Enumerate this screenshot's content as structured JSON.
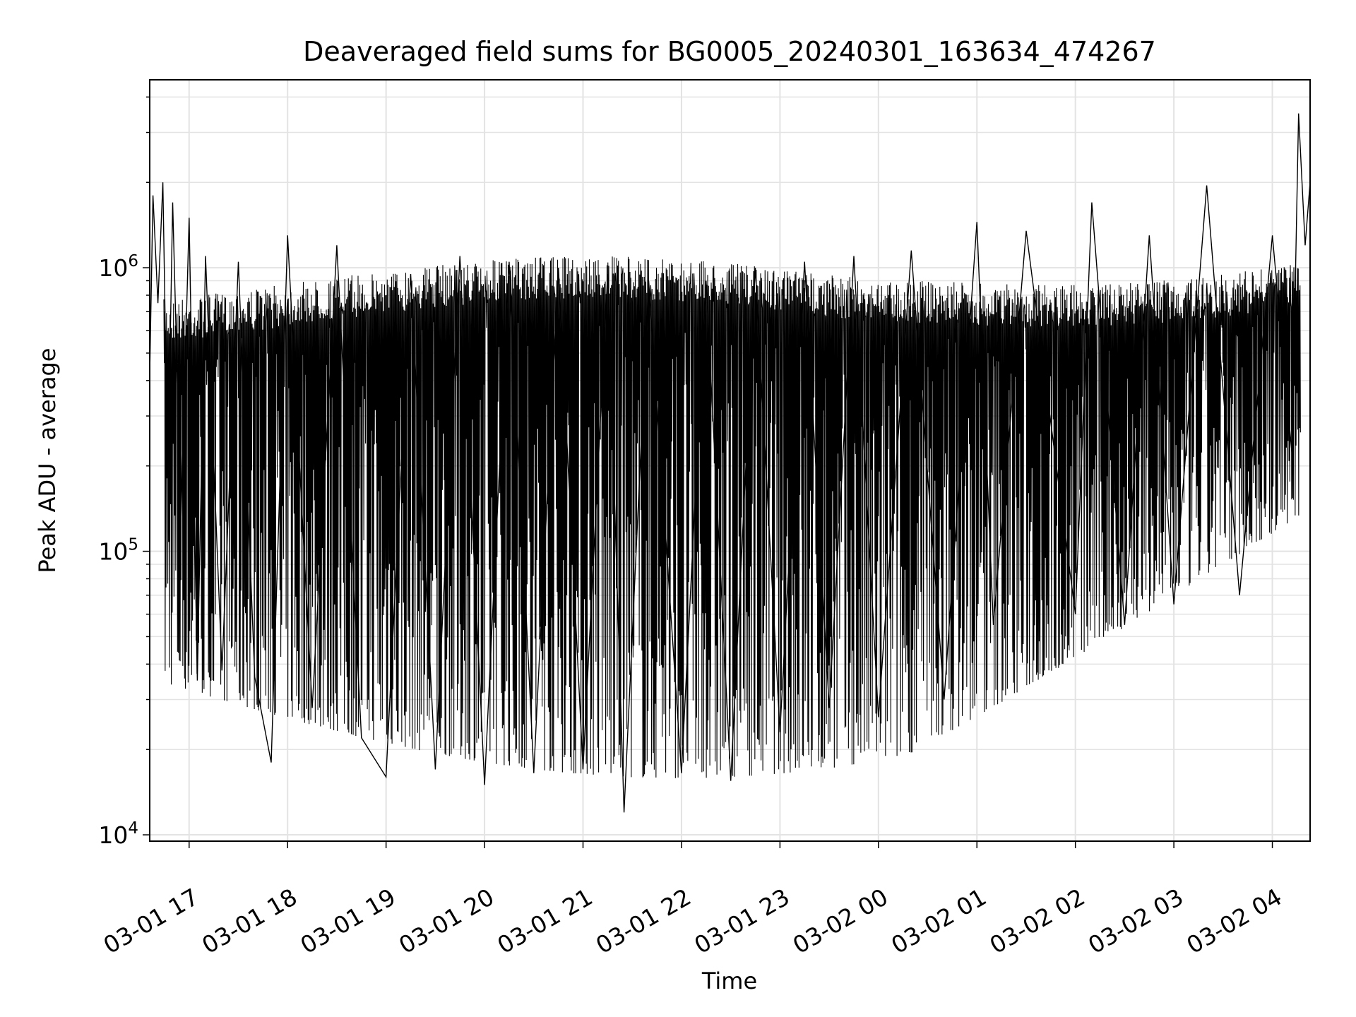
{
  "chart_data": {
    "type": "line",
    "title": "Deaveraged field sums for BG0005_20240301_163634_474267",
    "xlabel": "Time",
    "ylabel": "Peak ADU - average",
    "y_scale": "log",
    "ylim": [
      9500,
      4600000
    ],
    "xlim": [
      "2024-03-01 16:36",
      "2024-03-02 04:23"
    ],
    "grid": true,
    "line_color": "#000000",
    "grid_color": "#e3e3e3",
    "x_ticks": [
      {
        "t": "2024-03-01 17:00",
        "label": "03-01 17"
      },
      {
        "t": "2024-03-01 18:00",
        "label": "03-01 18"
      },
      {
        "t": "2024-03-01 19:00",
        "label": "03-01 19"
      },
      {
        "t": "2024-03-01 20:00",
        "label": "03-01 20"
      },
      {
        "t": "2024-03-01 21:00",
        "label": "03-01 21"
      },
      {
        "t": "2024-03-01 22:00",
        "label": "03-01 22"
      },
      {
        "t": "2024-03-01 23:00",
        "label": "03-01 23"
      },
      {
        "t": "2024-03-02 00:00",
        "label": "03-02 00"
      },
      {
        "t": "2024-03-02 01:00",
        "label": "03-02 01"
      },
      {
        "t": "2024-03-02 02:00",
        "label": "03-02 02"
      },
      {
        "t": "2024-03-02 03:00",
        "label": "03-02 03"
      },
      {
        "t": "2024-03-02 04:00",
        "label": "03-02 04"
      }
    ],
    "y_ticks": [
      {
        "value": 10000,
        "base": "10",
        "exp": "4"
      },
      {
        "value": 100000,
        "base": "10",
        "exp": "5"
      },
      {
        "value": 1000000,
        "base": "10",
        "exp": "6"
      }
    ],
    "series": [
      {
        "points": [
          [
            "2024-03-01 16:36",
            420000
          ],
          [
            "2024-03-01 16:38",
            1800000
          ],
          [
            "2024-03-01 16:41",
            750000
          ],
          [
            "2024-03-01 16:44",
            2000000
          ],
          [
            "2024-03-01 16:47",
            180000
          ],
          [
            "2024-03-01 16:50",
            1700000
          ],
          [
            "2024-03-01 16:55",
            130000
          ],
          [
            "2024-03-01 17:00",
            1500000
          ],
          [
            "2024-03-01 17:05",
            35000
          ],
          [
            "2024-03-01 17:10",
            1100000
          ],
          [
            "2024-03-01 17:20",
            38000
          ],
          [
            "2024-03-01 17:30",
            1050000
          ],
          [
            "2024-03-01 17:40",
            36000
          ],
          [
            "2024-03-01 17:50",
            18000
          ],
          [
            "2024-03-01 18:00",
            1300000
          ],
          [
            "2024-03-01 18:15",
            28000
          ],
          [
            "2024-03-01 18:30",
            1200000
          ],
          [
            "2024-03-01 18:45",
            22000
          ],
          [
            "2024-03-01 19:00",
            16000
          ],
          [
            "2024-03-01 19:15",
            950000
          ],
          [
            "2024-03-01 19:30",
            17000
          ],
          [
            "2024-03-01 19:45",
            1100000
          ],
          [
            "2024-03-01 20:00",
            15000
          ],
          [
            "2024-03-01 20:15",
            1050000
          ],
          [
            "2024-03-01 20:30",
            16500
          ],
          [
            "2024-03-01 20:45",
            1000000
          ],
          [
            "2024-03-01 21:00",
            17000
          ],
          [
            "2024-03-01 21:15",
            950000
          ],
          [
            "2024-03-01 21:25",
            12000
          ],
          [
            "2024-03-01 21:40",
            900000
          ],
          [
            "2024-03-01 22:00",
            16500
          ],
          [
            "2024-03-01 22:15",
            900000
          ],
          [
            "2024-03-01 22:30",
            15500
          ],
          [
            "2024-03-01 22:45",
            1000000
          ],
          [
            "2024-03-01 23:00",
            23000
          ],
          [
            "2024-03-01 23:15",
            1050000
          ],
          [
            "2024-03-01 23:30",
            28000
          ],
          [
            "2024-03-01 23:45",
            1100000
          ],
          [
            "2024-03-02 00:00",
            26000
          ],
          [
            "2024-03-02 00:20",
            1150000
          ],
          [
            "2024-03-02 00:40",
            30000
          ],
          [
            "2024-03-02 01:00",
            1450000
          ],
          [
            "2024-03-02 01:10",
            55000
          ],
          [
            "2024-03-02 01:30",
            1350000
          ],
          [
            "2024-03-02 02:00",
            60000
          ],
          [
            "2024-03-02 02:10",
            1700000
          ],
          [
            "2024-03-02 02:30",
            55000
          ],
          [
            "2024-03-02 02:45",
            1300000
          ],
          [
            "2024-03-02 03:00",
            65000
          ],
          [
            "2024-03-02 03:20",
            1950000
          ],
          [
            "2024-03-02 03:40",
            70000
          ],
          [
            "2024-03-02 04:00",
            1300000
          ],
          [
            "2024-03-02 04:12",
            220000
          ],
          [
            "2024-03-02 04:16",
            3500000
          ],
          [
            "2024-03-02 04:20",
            1200000
          ],
          [
            "2024-03-02 04:23",
            2000000
          ]
        ]
      }
    ]
  }
}
